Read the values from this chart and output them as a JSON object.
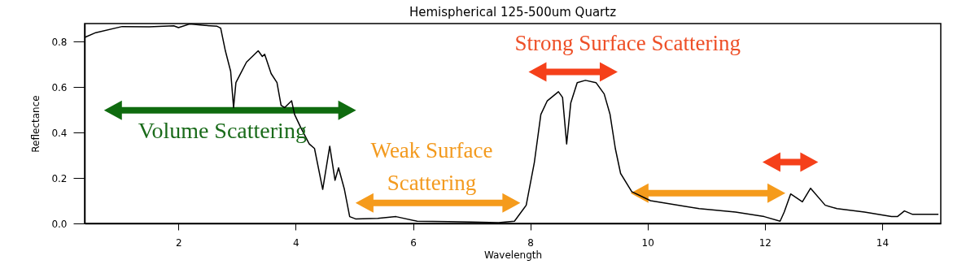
{
  "chart_data": {
    "type": "line",
    "title": "Hemispherical 125-500um Quartz",
    "xlabel": "Wavelength",
    "ylabel": "Reflectance",
    "x": [
      0.41,
      0.59,
      1.04,
      1.5,
      1.92,
      2.0,
      2.19,
      2.45,
      2.66,
      2.72,
      2.8,
      2.89,
      2.94,
      2.98,
      3.08,
      3.16,
      3.36,
      3.43,
      3.47,
      3.58,
      3.68,
      3.75,
      3.81,
      3.93,
      3.98,
      4.09,
      4.23,
      4.32,
      4.46,
      4.58,
      4.67,
      4.73,
      4.83,
      4.92,
      5.02,
      5.4,
      5.71,
      6.07,
      6.6,
      7.0,
      7.46,
      7.73,
      7.93,
      8.07,
      8.18,
      8.29,
      8.48,
      8.55,
      8.62,
      8.69,
      8.8,
      8.94,
      9.12,
      9.26,
      9.36,
      9.45,
      9.54,
      9.73,
      10.05,
      10.88,
      11.5,
      11.99,
      12.26,
      12.33,
      12.44,
      12.64,
      12.78,
      13.03,
      13.23,
      13.7,
      14.16,
      14.26,
      14.38,
      14.52,
      14.96
    ],
    "series": [
      {
        "color": "#000000",
        "values": [
          0.82,
          0.84,
          0.867,
          0.866,
          0.87,
          0.862,
          0.878,
          0.872,
          0.868,
          0.86,
          0.76,
          0.67,
          0.51,
          0.62,
          0.67,
          0.71,
          0.76,
          0.735,
          0.745,
          0.66,
          0.62,
          0.52,
          0.51,
          0.54,
          0.48,
          0.42,
          0.35,
          0.33,
          0.15,
          0.34,
          0.19,
          0.245,
          0.15,
          0.03,
          0.02,
          0.022,
          0.03,
          0.01,
          0.008,
          0.006,
          0.004,
          0.01,
          0.08,
          0.27,
          0.48,
          0.54,
          0.58,
          0.555,
          0.35,
          0.53,
          0.62,
          0.63,
          0.62,
          0.57,
          0.48,
          0.33,
          0.22,
          0.14,
          0.1,
          0.065,
          0.05,
          0.03,
          0.01,
          0.05,
          0.13,
          0.095,
          0.155,
          0.08,
          0.065,
          0.05,
          0.03,
          0.03,
          0.055,
          0.04,
          0.04
        ]
      }
    ],
    "xlim": [
      0.4,
      15
    ],
    "ylim": [
      0,
      0.88
    ],
    "xticks": [
      2,
      4,
      6,
      8,
      10,
      12,
      14
    ],
    "yticks": [
      {
        "value": 0,
        "label": "0.0"
      },
      {
        "value": 0.2,
        "label": "0.2"
      },
      {
        "value": 0.4,
        "label": "0.4"
      },
      {
        "value": 0.6,
        "label": "0.6"
      },
      {
        "value": 0.8,
        "label": "0.8"
      }
    ],
    "annotations": [
      "Volume Scattering",
      "Weak Surface Scattering",
      "Strong Surface Scattering"
    ],
    "grid": false,
    "marker": "none",
    "line_style": "solid"
  }
}
